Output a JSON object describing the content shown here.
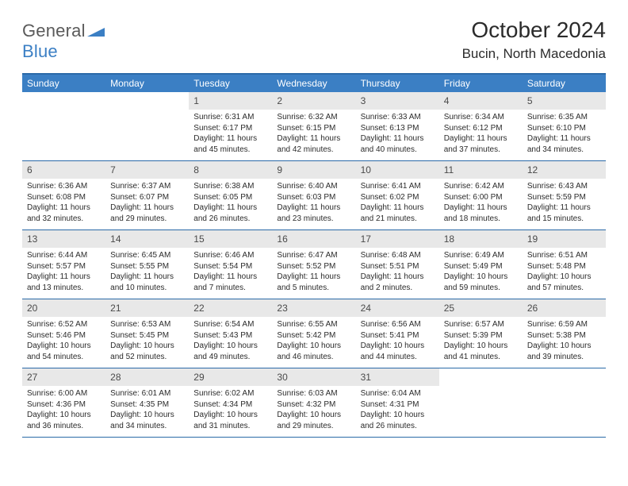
{
  "colors": {
    "header_bar": "#3b7fc4",
    "header_border": "#2b6aa8",
    "daynum_bg": "#e8e8e8",
    "page_bg": "#ffffff",
    "text": "#2b2b2b",
    "logo_gray": "#5a5a5a",
    "logo_blue": "#3b7fc4"
  },
  "logo": {
    "part1": "General",
    "part2": "Blue"
  },
  "title": "October 2024",
  "location": "Bucin, North Macedonia",
  "weekdays": [
    "Sunday",
    "Monday",
    "Tuesday",
    "Wednesday",
    "Thursday",
    "Friday",
    "Saturday"
  ],
  "calendar": {
    "month": 10,
    "year": 2024,
    "start_weekday_index": 2,
    "days_in_month": 31
  },
  "days": {
    "1": {
      "sunrise": "6:31 AM",
      "sunset": "6:17 PM",
      "daylight": "11 hours and 45 minutes."
    },
    "2": {
      "sunrise": "6:32 AM",
      "sunset": "6:15 PM",
      "daylight": "11 hours and 42 minutes."
    },
    "3": {
      "sunrise": "6:33 AM",
      "sunset": "6:13 PM",
      "daylight": "11 hours and 40 minutes."
    },
    "4": {
      "sunrise": "6:34 AM",
      "sunset": "6:12 PM",
      "daylight": "11 hours and 37 minutes."
    },
    "5": {
      "sunrise": "6:35 AM",
      "sunset": "6:10 PM",
      "daylight": "11 hours and 34 minutes."
    },
    "6": {
      "sunrise": "6:36 AM",
      "sunset": "6:08 PM",
      "daylight": "11 hours and 32 minutes."
    },
    "7": {
      "sunrise": "6:37 AM",
      "sunset": "6:07 PM",
      "daylight": "11 hours and 29 minutes."
    },
    "8": {
      "sunrise": "6:38 AM",
      "sunset": "6:05 PM",
      "daylight": "11 hours and 26 minutes."
    },
    "9": {
      "sunrise": "6:40 AM",
      "sunset": "6:03 PM",
      "daylight": "11 hours and 23 minutes."
    },
    "10": {
      "sunrise": "6:41 AM",
      "sunset": "6:02 PM",
      "daylight": "11 hours and 21 minutes."
    },
    "11": {
      "sunrise": "6:42 AM",
      "sunset": "6:00 PM",
      "daylight": "11 hours and 18 minutes."
    },
    "12": {
      "sunrise": "6:43 AM",
      "sunset": "5:59 PM",
      "daylight": "11 hours and 15 minutes."
    },
    "13": {
      "sunrise": "6:44 AM",
      "sunset": "5:57 PM",
      "daylight": "11 hours and 13 minutes."
    },
    "14": {
      "sunrise": "6:45 AM",
      "sunset": "5:55 PM",
      "daylight": "11 hours and 10 minutes."
    },
    "15": {
      "sunrise": "6:46 AM",
      "sunset": "5:54 PM",
      "daylight": "11 hours and 7 minutes."
    },
    "16": {
      "sunrise": "6:47 AM",
      "sunset": "5:52 PM",
      "daylight": "11 hours and 5 minutes."
    },
    "17": {
      "sunrise": "6:48 AM",
      "sunset": "5:51 PM",
      "daylight": "11 hours and 2 minutes."
    },
    "18": {
      "sunrise": "6:49 AM",
      "sunset": "5:49 PM",
      "daylight": "10 hours and 59 minutes."
    },
    "19": {
      "sunrise": "6:51 AM",
      "sunset": "5:48 PM",
      "daylight": "10 hours and 57 minutes."
    },
    "20": {
      "sunrise": "6:52 AM",
      "sunset": "5:46 PM",
      "daylight": "10 hours and 54 minutes."
    },
    "21": {
      "sunrise": "6:53 AM",
      "sunset": "5:45 PM",
      "daylight": "10 hours and 52 minutes."
    },
    "22": {
      "sunrise": "6:54 AM",
      "sunset": "5:43 PM",
      "daylight": "10 hours and 49 minutes."
    },
    "23": {
      "sunrise": "6:55 AM",
      "sunset": "5:42 PM",
      "daylight": "10 hours and 46 minutes."
    },
    "24": {
      "sunrise": "6:56 AM",
      "sunset": "5:41 PM",
      "daylight": "10 hours and 44 minutes."
    },
    "25": {
      "sunrise": "6:57 AM",
      "sunset": "5:39 PM",
      "daylight": "10 hours and 41 minutes."
    },
    "26": {
      "sunrise": "6:59 AM",
      "sunset": "5:38 PM",
      "daylight": "10 hours and 39 minutes."
    },
    "27": {
      "sunrise": "6:00 AM",
      "sunset": "4:36 PM",
      "daylight": "10 hours and 36 minutes."
    },
    "28": {
      "sunrise": "6:01 AM",
      "sunset": "4:35 PM",
      "daylight": "10 hours and 34 minutes."
    },
    "29": {
      "sunrise": "6:02 AM",
      "sunset": "4:34 PM",
      "daylight": "10 hours and 31 minutes."
    },
    "30": {
      "sunrise": "6:03 AM",
      "sunset": "4:32 PM",
      "daylight": "10 hours and 29 minutes."
    },
    "31": {
      "sunrise": "6:04 AM",
      "sunset": "4:31 PM",
      "daylight": "10 hours and 26 minutes."
    }
  },
  "labels": {
    "sunrise_prefix": "Sunrise: ",
    "sunset_prefix": "Sunset: ",
    "daylight_prefix": "Daylight: "
  }
}
